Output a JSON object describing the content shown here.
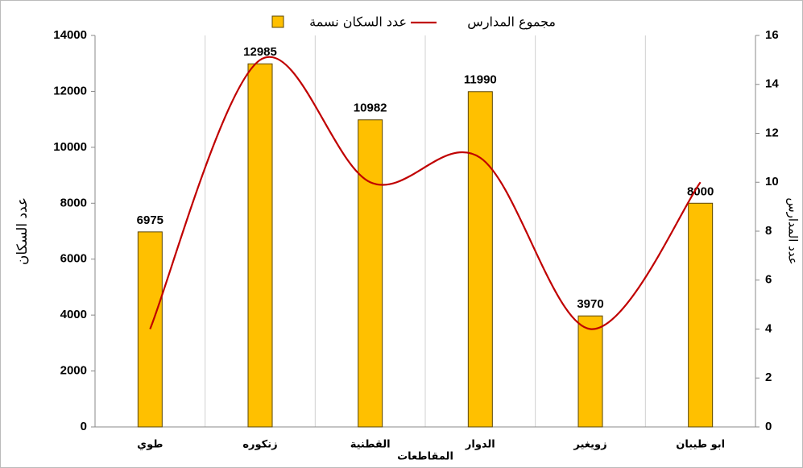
{
  "chart_data": {
    "type": "bar",
    "categories": [
      "طوي",
      "زنكوره",
      "القطنية",
      "الدوار",
      "زويغير",
      "ابو طيبان"
    ],
    "series": [
      {
        "name": "عدد السكان نسمة",
        "type": "bar",
        "color": "#FFC000",
        "values": [
          6975,
          12985,
          10982,
          11990,
          3970,
          8000
        ]
      },
      {
        "name": "مجموع المدارس",
        "type": "line",
        "color": "#C00000",
        "axis": "y2",
        "values": [
          4,
          15,
          10,
          11,
          4,
          10
        ]
      }
    ],
    "ylabel": "عدد السكان",
    "y2label": "عدد المدارس",
    "xlabel": "المقاطعات",
    "ylim": [
      0,
      14000
    ],
    "yticks": [
      0,
      2000,
      4000,
      6000,
      8000,
      10000,
      12000,
      14000
    ],
    "y2lim": [
      0,
      16
    ],
    "y2ticks": [
      0,
      2,
      4,
      6,
      8,
      10,
      12,
      14,
      16
    ],
    "legend": "top"
  }
}
